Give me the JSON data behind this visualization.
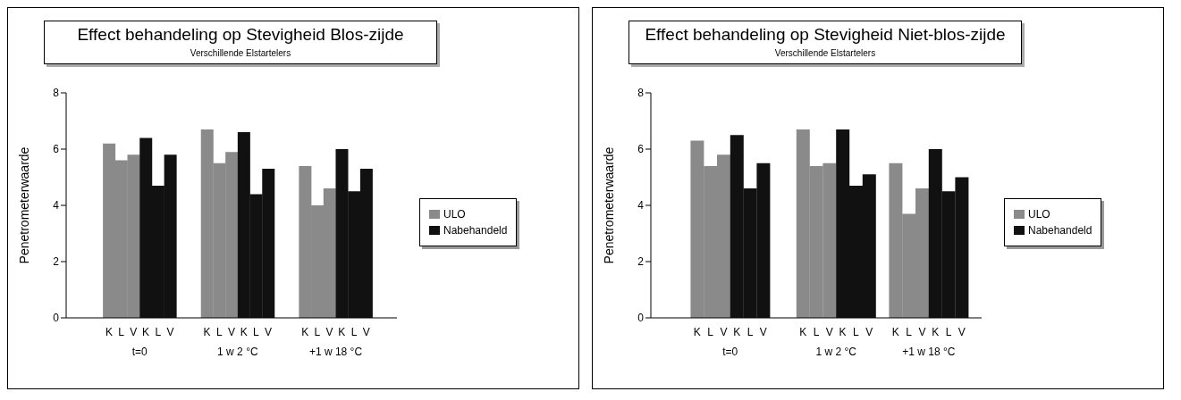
{
  "chart_data": [
    {
      "type": "bar",
      "title": "Effect behandeling op Stevigheid Blos-zijde",
      "subtitle": "Verschillende Elstartelers",
      "ylabel": "Penetrometerwaarde",
      "categories": [
        null,
        null,
        null,
        "K",
        "L",
        "V",
        "K",
        "L",
        "V",
        null,
        null,
        "K",
        "L",
        "V",
        "K",
        "L",
        "V",
        null,
        null,
        "K",
        "L",
        "V",
        "K",
        "L",
        "V",
        null,
        null
      ],
      "stacked": true,
      "series": [
        {
          "name": "ULO",
          "color": "#8a8a8a",
          "values": [
            null,
            null,
            null,
            6.2,
            5.6,
            5.8,
            null,
            null,
            null,
            null,
            null,
            6.7,
            5.5,
            5.9,
            null,
            null,
            null,
            null,
            null,
            5.4,
            4.0,
            4.6,
            null,
            null,
            null,
            null,
            null
          ]
        },
        {
          "name": "Nabehandeld",
          "color": "#111111",
          "values": [
            null,
            null,
            null,
            null,
            null,
            null,
            6.4,
            4.7,
            5.8,
            null,
            null,
            null,
            null,
            null,
            6.6,
            4.4,
            5.3,
            null,
            null,
            null,
            null,
            null,
            6.0,
            4.5,
            5.3,
            null,
            null
          ]
        }
      ],
      "ylim": [
        0,
        8
      ],
      "yticks": [
        0,
        2,
        4,
        6,
        8
      ],
      "grid": false,
      "legend": "right",
      "annotations": [
        "t=0",
        "1 w 2 °C",
        "+1 w 18 °C"
      ]
    },
    {
      "type": "bar",
      "title": "Effect behandeling op Stevigheid Niet-blos-zijde",
      "subtitle": "Verschillende Elstartelers",
      "ylabel": "Penetrometerwaarde",
      "categories": [
        null,
        null,
        null,
        "K",
        "L",
        "V",
        "K",
        "L",
        "V",
        null,
        null,
        "K",
        "L",
        "V",
        "K",
        "L",
        "V",
        null,
        "K",
        "L",
        "V",
        "K",
        "L",
        "V",
        null
      ],
      "stacked": true,
      "series": [
        {
          "name": "ULO",
          "color": "#8a8a8a",
          "values": [
            null,
            null,
            null,
            6.3,
            5.4,
            5.8,
            null,
            null,
            null,
            null,
            null,
            6.7,
            5.4,
            5.5,
            null,
            null,
            null,
            null,
            5.5,
            3.7,
            4.6,
            null,
            null,
            null,
            null
          ]
        },
        {
          "name": "Nabehandeld",
          "color": "#111111",
          "values": [
            null,
            null,
            null,
            null,
            null,
            null,
            6.5,
            4.6,
            5.5,
            null,
            null,
            null,
            null,
            null,
            6.7,
            4.7,
            5.1,
            null,
            null,
            null,
            null,
            6.0,
            4.5,
            5.0,
            null
          ]
        }
      ],
      "ylim": [
        0,
        8
      ],
      "yticks": [
        0,
        2,
        4,
        6,
        8
      ],
      "grid": false,
      "legend": "right",
      "annotations": [
        "t=0",
        "1 w 2 °C",
        "+1 w 18 °C"
      ]
    }
  ]
}
